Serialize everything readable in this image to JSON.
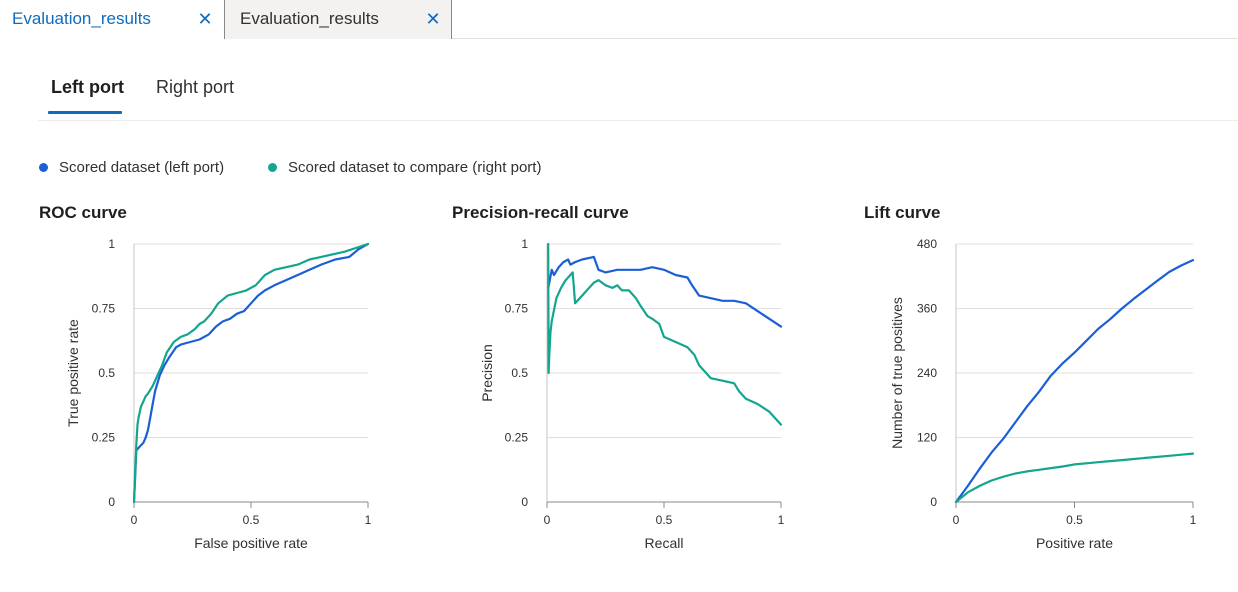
{
  "doc_tabs": [
    {
      "label": "Evaluation_results",
      "close": "✕"
    },
    {
      "label": "Evaluation_results",
      "close": "✕"
    }
  ],
  "port_tabs": [
    {
      "label": "Left port",
      "selected": true
    },
    {
      "label": "Right port",
      "selected": false
    }
  ],
  "legend": [
    {
      "label": "Scored dataset (left port)",
      "color": "#1a5fd6"
    },
    {
      "label": "Scored dataset to compare (right port)",
      "color": "#13a58e"
    }
  ],
  "chart_data": [
    {
      "type": "line",
      "title": "ROC curve",
      "xlabel": "False positive rate",
      "ylabel": "True positive rate",
      "xlim": [
        0,
        1
      ],
      "ylim": [
        0,
        1
      ],
      "xticks": [
        "0",
        "0.5",
        "1"
      ],
      "yticks": [
        "0",
        "0.25",
        "0.5",
        "0.75",
        "1"
      ],
      "grid": true,
      "series": [
        {
          "name": "Scored dataset (left port)",
          "color": "#1a5fd6",
          "x": [
            0,
            0.005,
            0.01,
            0.02,
            0.03,
            0.04,
            0.05,
            0.06,
            0.07,
            0.08,
            0.09,
            0.1,
            0.11,
            0.13,
            0.15,
            0.18,
            0.2,
            0.24,
            0.28,
            0.32,
            0.35,
            0.38,
            0.41,
            0.44,
            0.47,
            0.5,
            0.53,
            0.56,
            0.6,
            0.65,
            0.7,
            0.75,
            0.8,
            0.86,
            0.92,
            0.96,
            1.0
          ],
          "y": [
            0,
            0.1,
            0.2,
            0.21,
            0.22,
            0.23,
            0.25,
            0.28,
            0.33,
            0.38,
            0.43,
            0.46,
            0.49,
            0.53,
            0.56,
            0.6,
            0.61,
            0.62,
            0.63,
            0.65,
            0.68,
            0.7,
            0.71,
            0.73,
            0.74,
            0.77,
            0.8,
            0.82,
            0.84,
            0.86,
            0.88,
            0.9,
            0.92,
            0.94,
            0.95,
            0.98,
            1.0
          ]
        },
        {
          "name": "Scored dataset to compare (right port)",
          "color": "#13a58e",
          "x": [
            0,
            0.005,
            0.01,
            0.015,
            0.02,
            0.03,
            0.04,
            0.05,
            0.06,
            0.08,
            0.1,
            0.12,
            0.14,
            0.17,
            0.2,
            0.23,
            0.26,
            0.28,
            0.3,
            0.33,
            0.36,
            0.4,
            0.44,
            0.48,
            0.52,
            0.56,
            0.6,
            0.65,
            0.7,
            0.75,
            0.8,
            0.9,
            1.0
          ],
          "y": [
            0,
            0.12,
            0.22,
            0.3,
            0.33,
            0.37,
            0.39,
            0.41,
            0.42,
            0.45,
            0.49,
            0.53,
            0.58,
            0.62,
            0.64,
            0.65,
            0.67,
            0.69,
            0.7,
            0.73,
            0.77,
            0.8,
            0.81,
            0.82,
            0.84,
            0.88,
            0.9,
            0.91,
            0.92,
            0.94,
            0.95,
            0.97,
            1.0
          ]
        }
      ]
    },
    {
      "type": "line",
      "title": "Precision-recall curve",
      "xlabel": "Recall",
      "ylabel": "Precision",
      "xlim": [
        0,
        1
      ],
      "ylim": [
        0,
        1
      ],
      "xticks": [
        "0",
        "0.5",
        "1"
      ],
      "yticks": [
        "0",
        "0.25",
        "0.5",
        "0.75",
        "1"
      ],
      "grid": true,
      "series": [
        {
          "name": "Scored dataset (left port)",
          "color": "#1a5fd6",
          "x": [
            0.005,
            0.01,
            0.02,
            0.03,
            0.05,
            0.07,
            0.09,
            0.1,
            0.12,
            0.15,
            0.2,
            0.22,
            0.25,
            0.3,
            0.35,
            0.4,
            0.45,
            0.5,
            0.55,
            0.6,
            0.62,
            0.65,
            0.7,
            0.75,
            0.8,
            0.85,
            0.9,
            0.95,
            1.0
          ],
          "y": [
            0.83,
            0.85,
            0.9,
            0.88,
            0.91,
            0.93,
            0.94,
            0.92,
            0.93,
            0.94,
            0.95,
            0.9,
            0.89,
            0.9,
            0.9,
            0.9,
            0.91,
            0.9,
            0.88,
            0.87,
            0.84,
            0.8,
            0.79,
            0.78,
            0.78,
            0.77,
            0.74,
            0.71,
            0.68
          ]
        },
        {
          "name": "Scored dataset to compare (right port)",
          "color": "#13a58e",
          "x": [
            0.005,
            0.007,
            0.01,
            0.015,
            0.02,
            0.04,
            0.06,
            0.08,
            0.1,
            0.11,
            0.12,
            0.15,
            0.18,
            0.2,
            0.22,
            0.25,
            0.28,
            0.3,
            0.32,
            0.35,
            0.38,
            0.4,
            0.43,
            0.45,
            0.48,
            0.5,
            0.55,
            0.6,
            0.63,
            0.65,
            0.68,
            0.7,
            0.75,
            0.8,
            0.82,
            0.85,
            0.9,
            0.95,
            1.0
          ],
          "y": [
            1.0,
            0.5,
            0.57,
            0.66,
            0.7,
            0.79,
            0.83,
            0.86,
            0.88,
            0.89,
            0.77,
            0.8,
            0.83,
            0.85,
            0.86,
            0.84,
            0.83,
            0.84,
            0.82,
            0.82,
            0.79,
            0.76,
            0.72,
            0.71,
            0.69,
            0.64,
            0.62,
            0.6,
            0.57,
            0.53,
            0.5,
            0.48,
            0.47,
            0.46,
            0.43,
            0.4,
            0.38,
            0.35,
            0.3
          ]
        }
      ]
    },
    {
      "type": "line",
      "title": "Lift curve",
      "xlabel": "Positive rate",
      "ylabel": "Number of true positives",
      "xlim": [
        0,
        1
      ],
      "ylim": [
        0,
        480
      ],
      "xticks": [
        "0",
        "0.5",
        "1"
      ],
      "yticks": [
        "0",
        "120",
        "240",
        "360",
        "480"
      ],
      "grid": true,
      "series": [
        {
          "name": "Scored dataset (left port)",
          "color": "#1a5fd6",
          "x": [
            0,
            0.05,
            0.1,
            0.15,
            0.2,
            0.25,
            0.3,
            0.35,
            0.4,
            0.45,
            0.5,
            0.55,
            0.6,
            0.65,
            0.7,
            0.75,
            0.8,
            0.85,
            0.9,
            0.95,
            1.0
          ],
          "y": [
            0,
            30,
            62,
            92,
            118,
            148,
            178,
            205,
            235,
            258,
            278,
            300,
            322,
            340,
            360,
            378,
            395,
            412,
            428,
            440,
            450
          ]
        },
        {
          "name": "Scored dataset to compare (right port)",
          "color": "#13a58e",
          "x": [
            0,
            0.05,
            0.1,
            0.15,
            0.2,
            0.25,
            0.3,
            0.35,
            0.4,
            0.45,
            0.5,
            0.55,
            0.6,
            0.65,
            0.7,
            0.75,
            0.8,
            0.85,
            0.9,
            0.95,
            1.0
          ],
          "y": [
            0,
            18,
            30,
            40,
            47,
            53,
            57,
            60,
            63,
            66,
            70,
            72,
            74,
            76,
            78,
            80,
            82,
            84,
            86,
            88,
            90
          ]
        }
      ]
    }
  ]
}
